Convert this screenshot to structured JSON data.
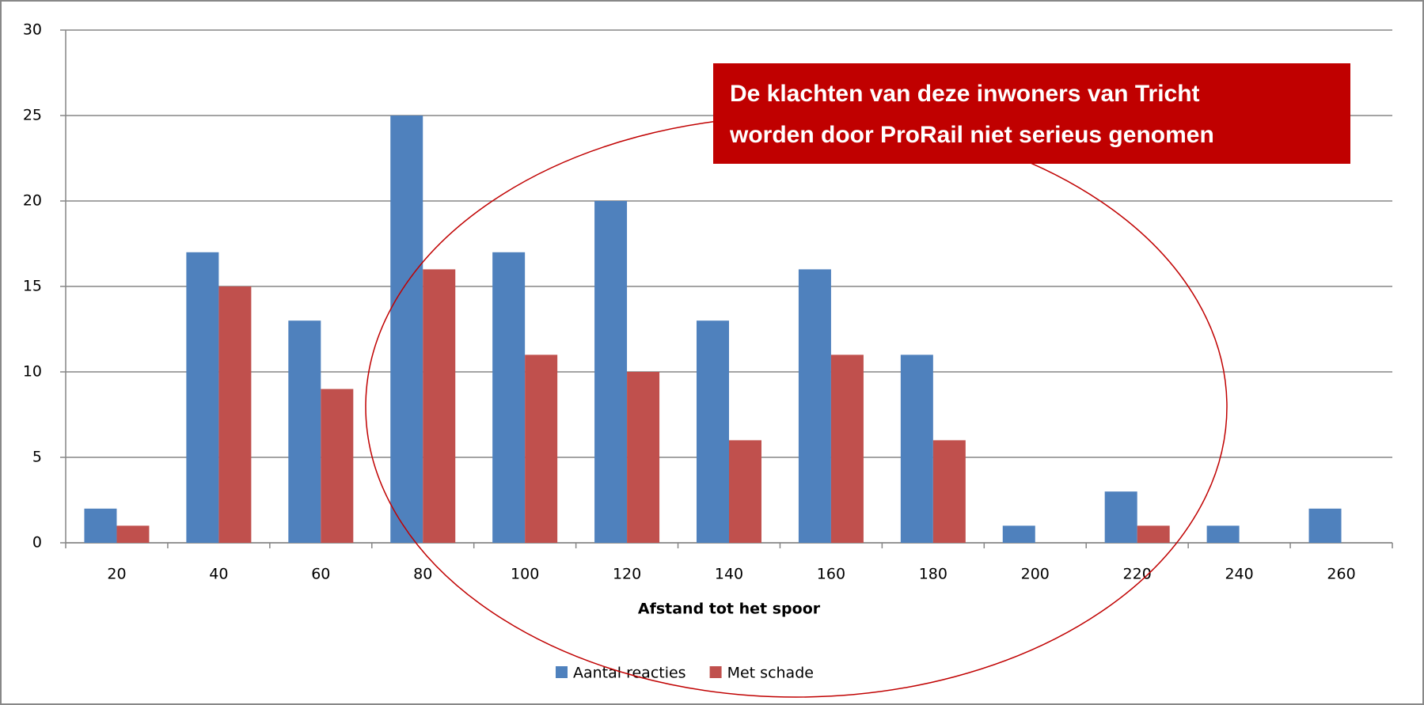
{
  "chart_data": {
    "type": "bar",
    "categories": [
      "20",
      "40",
      "60",
      "80",
      "100",
      "120",
      "140",
      "160",
      "180",
      "200",
      "220",
      "240",
      "260"
    ],
    "series": [
      {
        "name": "Aantal reacties",
        "color": "#4f81bd",
        "values": [
          2,
          17,
          13,
          25,
          17,
          20,
          13,
          16,
          11,
          1,
          3,
          1,
          2
        ]
      },
      {
        "name": "Met schade",
        "color": "#c0504d",
        "values": [
          1,
          15,
          9,
          16,
          11,
          10,
          6,
          11,
          6,
          0,
          1,
          0,
          0
        ]
      }
    ],
    "x_label": "Afstand tot het spoor",
    "ylim": [
      0,
      30
    ],
    "yticks": [
      0,
      5,
      10,
      15,
      20,
      25,
      30
    ],
    "grid": true,
    "legend": "bottom",
    "annotation": [
      "De klachten van deze inwoners van Tricht",
      "worden door ProRail niet serieus genomen"
    ]
  }
}
